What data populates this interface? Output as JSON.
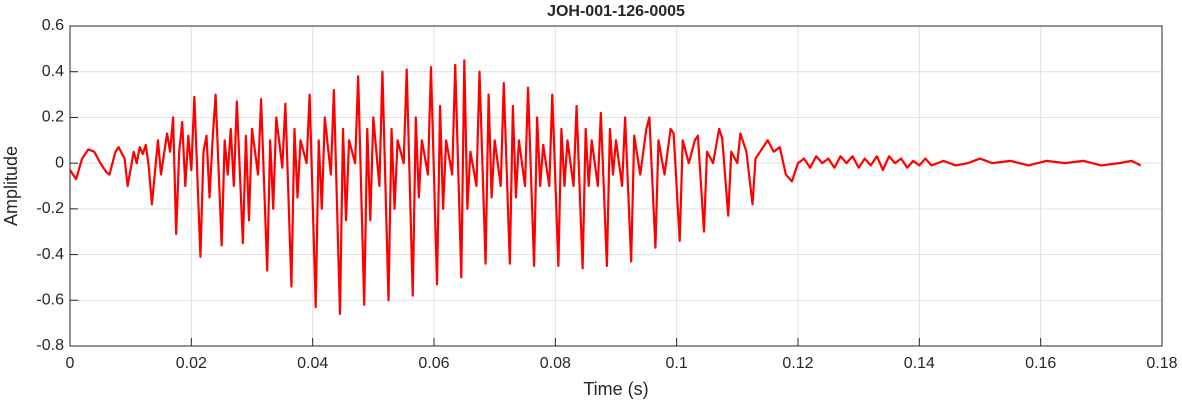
{
  "chart_data": {
    "type": "line",
    "title": "JOH-001-126-0005",
    "xlabel": "Time (s)",
    "ylabel": "Amplitude",
    "x": [
      0,
      0.001,
      0.002,
      0.003,
      0.004,
      0.005,
      0.006,
      0.0065,
      0.0075,
      0.008,
      0.009,
      0.0095,
      0.0105,
      0.011,
      0.0115,
      0.012,
      0.0125,
      0.013,
      0.0135,
      0.0145,
      0.015,
      0.016,
      0.0165,
      0.017,
      0.0175,
      0.018,
      0.0185,
      0.019,
      0.0195,
      0.02,
      0.0205,
      0.0215,
      0.022,
      0.0225,
      0.023,
      0.0235,
      0.024,
      0.025,
      0.0255,
      0.026,
      0.0265,
      0.027,
      0.0275,
      0.0285,
      0.029,
      0.0295,
      0.03,
      0.031,
      0.0315,
      0.0325,
      0.033,
      0.0335,
      0.034,
      0.035,
      0.0355,
      0.0365,
      0.037,
      0.0375,
      0.038,
      0.039,
      0.0395,
      0.0405,
      0.041,
      0.0415,
      0.042,
      0.043,
      0.0435,
      0.0445,
      0.045,
      0.0455,
      0.046,
      0.047,
      0.0475,
      0.0485,
      0.049,
      0.0495,
      0.05,
      0.051,
      0.0515,
      0.0525,
      0.053,
      0.0535,
      0.054,
      0.055,
      0.0555,
      0.0565,
      0.057,
      0.0575,
      0.058,
      0.059,
      0.0595,
      0.0605,
      0.061,
      0.0615,
      0.062,
      0.063,
      0.0635,
      0.0645,
      0.065,
      0.0655,
      0.066,
      0.067,
      0.0675,
      0.0685,
      0.069,
      0.0695,
      0.07,
      0.071,
      0.0715,
      0.0725,
      0.073,
      0.0735,
      0.074,
      0.075,
      0.0755,
      0.0765,
      0.077,
      0.0775,
      0.078,
      0.079,
      0.0795,
      0.0805,
      0.081,
      0.0815,
      0.082,
      0.083,
      0.0835,
      0.0845,
      0.085,
      0.0855,
      0.086,
      0.087,
      0.0875,
      0.0885,
      0.089,
      0.0895,
      0.09,
      0.091,
      0.0915,
      0.0925,
      0.093,
      0.094,
      0.095,
      0.0955,
      0.0965,
      0.097,
      0.098,
      0.099,
      0.0995,
      0.1005,
      0.101,
      0.102,
      0.103,
      0.1035,
      0.1045,
      0.105,
      0.106,
      0.107,
      0.1075,
      0.1085,
      0.109,
      0.11,
      0.1105,
      0.1115,
      0.1125,
      0.113,
      0.114,
      0.115,
      0.116,
      0.117,
      0.118,
      0.119,
      0.12,
      0.121,
      0.122,
      0.123,
      0.124,
      0.125,
      0.126,
      0.127,
      0.128,
      0.129,
      0.13,
      0.131,
      0.132,
      0.133,
      0.134,
      0.135,
      0.136,
      0.137,
      0.138,
      0.139,
      0.14,
      0.141,
      0.142,
      0.144,
      0.146,
      0.148,
      0.15,
      0.152,
      0.155,
      0.158,
      0.161,
      0.164,
      0.167,
      0.17,
      0.173,
      0.175,
      0.1765
    ],
    "series": [
      {
        "color": "#ff0000",
        "values": [
          -0.03,
          -0.07,
          0.02,
          0.06,
          0.05,
          0.0,
          -0.04,
          -0.05,
          0.05,
          0.07,
          0.02,
          -0.1,
          0.05,
          0.0,
          0.07,
          0.04,
          0.08,
          -0.02,
          -0.18,
          0.1,
          -0.05,
          0.13,
          0.05,
          0.2,
          -0.31,
          0.05,
          0.18,
          -0.1,
          0.12,
          -0.03,
          0.29,
          -0.41,
          0.05,
          0.12,
          -0.15,
          0.1,
          0.3,
          -0.36,
          0.1,
          -0.05,
          0.15,
          -0.1,
          0.27,
          -0.35,
          0.12,
          -0.25,
          0.15,
          -0.05,
          0.28,
          -0.47,
          0.1,
          -0.2,
          0.2,
          -0.02,
          0.26,
          -0.54,
          0.15,
          -0.15,
          0.1,
          0.0,
          0.3,
          -0.63,
          0.1,
          -0.2,
          0.2,
          -0.05,
          0.32,
          -0.66,
          0.15,
          -0.25,
          0.1,
          0.0,
          0.38,
          -0.62,
          0.15,
          -0.25,
          0.2,
          -0.1,
          0.4,
          -0.6,
          0.15,
          -0.2,
          0.1,
          0.0,
          0.41,
          -0.58,
          0.2,
          -0.15,
          0.1,
          -0.05,
          0.42,
          -0.53,
          0.25,
          -0.2,
          0.1,
          -0.05,
          0.43,
          -0.5,
          0.45,
          -0.2,
          0.05,
          -0.1,
          0.4,
          -0.44,
          0.3,
          -0.15,
          0.1,
          -0.1,
          0.35,
          -0.44,
          0.25,
          -0.15,
          0.1,
          -0.1,
          0.33,
          -0.45,
          0.2,
          -0.1,
          0.08,
          -0.1,
          0.3,
          -0.45,
          0.15,
          -0.1,
          0.1,
          -0.1,
          0.25,
          -0.46,
          0.15,
          -0.1,
          0.1,
          -0.1,
          0.22,
          -0.45,
          0.15,
          -0.05,
          0.1,
          -0.1,
          0.2,
          -0.43,
          0.12,
          -0.05,
          0.15,
          0.2,
          -0.37,
          0.1,
          -0.05,
          0.15,
          0.13,
          -0.34,
          0.1,
          0.0,
          0.1,
          0.12,
          -0.3,
          0.05,
          0.0,
          0.15,
          0.11,
          -0.23,
          0.05,
          0.0,
          0.13,
          0.05,
          -0.18,
          0.02,
          0.06,
          0.1,
          0.05,
          0.07,
          -0.05,
          -0.08,
          0.0,
          0.02,
          -0.02,
          0.03,
          0.0,
          0.02,
          -0.02,
          0.03,
          0.0,
          0.03,
          -0.02,
          0.02,
          -0.01,
          0.03,
          -0.03,
          0.03,
          0.0,
          0.02,
          -0.02,
          0.01,
          -0.01,
          0.02,
          -0.01,
          0.01,
          -0.01,
          0.0,
          0.02,
          0.0,
          0.01,
          -0.01,
          0.01,
          0.0,
          0.01,
          -0.01,
          0.0,
          0.01,
          -0.01
        ]
      }
    ],
    "xlim": [
      0,
      0.18
    ],
    "xticks": [
      0,
      0.02,
      0.04,
      0.06,
      0.08,
      0.1,
      0.12,
      0.14,
      0.16,
      0.18
    ],
    "ylim": [
      -0.8,
      0.6
    ],
    "yticks": [
      -0.8,
      -0.6,
      -0.4,
      -0.2,
      0,
      0.2,
      0.4,
      0.6
    ],
    "grid": true
  }
}
